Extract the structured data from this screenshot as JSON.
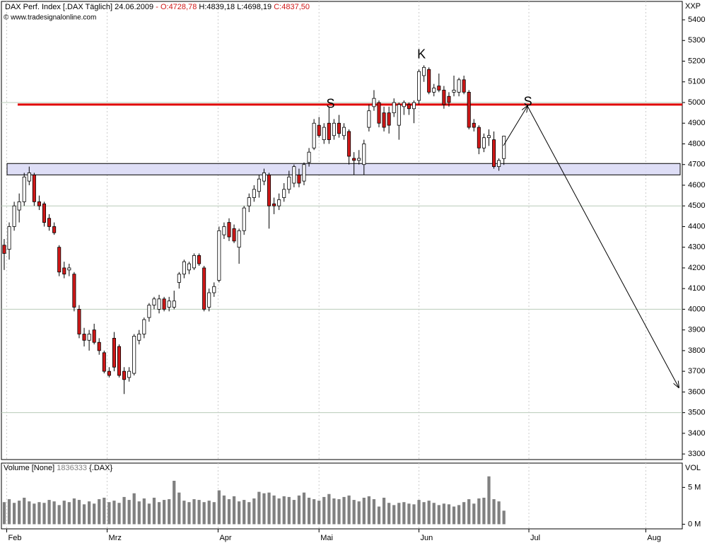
{
  "header": {
    "instrument": "DAX Perf. Index [.DAX  Täglich]",
    "date": "24.06.2009",
    "dash": "-",
    "open": "O:4728,78",
    "high": "H:4839,18",
    "low": "L:4698,19",
    "close": "C:4837,50",
    "copyright": "© www.tradesignalonline.com",
    "price_unit": "XXP"
  },
  "chart_data": [
    {
      "type": "candlestick",
      "ylim": [
        3273,
        5489
      ],
      "yticks": [
        3300,
        3400,
        3500,
        3600,
        3700,
        3800,
        3900,
        4000,
        4100,
        4200,
        4300,
        4400,
        4500,
        4600,
        4700,
        4800,
        4900,
        5000,
        5100,
        5200,
        5300,
        5400
      ],
      "ygrid": [
        3500,
        4000,
        4500,
        5000
      ],
      "xlim": [
        -0.56,
        135.7
      ],
      "xticks": [
        {
          "value": 0.5,
          "label": "Feb"
        },
        {
          "value": 20.6,
          "label": "Mrz"
        },
        {
          "value": 42.8,
          "label": "Apr"
        },
        {
          "value": 63,
          "label": "Mai"
        },
        {
          "value": 83,
          "label": "Jun"
        },
        {
          "value": 105,
          "label": "Jul"
        },
        {
          "value": 128.4,
          "label": "Aug"
        }
      ],
      "up_color": "#ffffff",
      "down_color": "#d01818",
      "resistance_level": 4990,
      "resistance_color": "#e00000",
      "support_zone": [
        4650,
        4705
      ],
      "support_color": "#d8d8f4",
      "annotations": [
        {
          "text": "S",
          "x": 65.3,
          "y": 4990
        },
        {
          "text": "K",
          "x": 83.5,
          "y": 5230
        },
        {
          "text": "S",
          "x": 104.8,
          "y": 5000
        }
      ],
      "open": [
        4310,
        4290,
        4400,
        4480,
        4520,
        4620,
        4650,
        4520,
        4510,
        4440,
        4400,
        4300,
        4200,
        4190,
        4170,
        4000,
        3880,
        3850,
        3900,
        3840,
        3790,
        3700,
        3860,
        3820,
        3700,
        3670,
        3690,
        3850,
        3880,
        3960,
        4020,
        4000,
        4050,
        4010,
        4010,
        4130,
        4170,
        4190,
        4200,
        4260,
        4200,
        4010,
        4080,
        4140,
        4360,
        4420,
        4390,
        4300,
        4380,
        4500,
        4540,
        4570,
        4620,
        4650,
        4510,
        4500,
        4540,
        4580,
        4610,
        4650,
        4620,
        4710,
        4780,
        4890,
        4820,
        4900,
        4840,
        4900,
        4840,
        4860,
        4730,
        4720,
        4700,
        4880,
        4980,
        5000,
        4950,
        4950,
        4950,
        4890,
        4980,
        4990,
        4970,
        5010,
        5130,
        5160,
        5050,
        5080,
        5060,
        5030,
        5050,
        5050,
        5110,
        5050,
        4900,
        4880,
        4780,
        4830,
        4820,
        4690,
        4728.78
      ],
      "high": [
        4340,
        4420,
        4520,
        4560,
        4660,
        4690,
        4660,
        4550,
        4520,
        4460,
        4420,
        4310,
        4230,
        4220,
        4180,
        4020,
        3910,
        3900,
        3930,
        3860,
        3800,
        3720,
        3890,
        3830,
        3720,
        3720,
        3880,
        3900,
        3960,
        4030,
        4060,
        4070,
        4060,
        4060,
        4090,
        4180,
        4240,
        4230,
        4270,
        4270,
        4210,
        4100,
        4130,
        4400,
        4420,
        4440,
        4410,
        4390,
        4500,
        4560,
        4600,
        4650,
        4680,
        4660,
        4540,
        4560,
        4610,
        4670,
        4700,
        4680,
        4710,
        4780,
        4920,
        4930,
        4900,
        4980,
        4920,
        4940,
        4900,
        4870,
        4760,
        4770,
        4820,
        4990,
        5060,
        5010,
        4980,
        4980,
        5020,
        5000,
        5010,
        5000,
        5010,
        5160,
        5180,
        5170,
        5090,
        5140,
        5080,
        5050,
        5130,
        5120,
        5130,
        5060,
        4920,
        4890,
        4850,
        4870,
        4860,
        4730,
        4839.18
      ],
      "low": [
        4190,
        4240,
        4380,
        4420,
        4500,
        4600,
        4500,
        4480,
        4400,
        4380,
        4360,
        4160,
        4150,
        4160,
        3990,
        3860,
        3820,
        3800,
        3830,
        3780,
        3690,
        3670,
        3700,
        3670,
        3590,
        3650,
        3680,
        3830,
        3860,
        3940,
        4000,
        3980,
        3990,
        3990,
        4000,
        4100,
        4150,
        4170,
        4190,
        4210,
        3990,
        3990,
        4060,
        4130,
        4340,
        4330,
        4320,
        4220,
        4360,
        4470,
        4520,
        4540,
        4600,
        4390,
        4460,
        4480,
        4520,
        4560,
        4590,
        4590,
        4600,
        4690,
        4770,
        4830,
        4800,
        4800,
        4820,
        4830,
        4820,
        4700,
        4650,
        4700,
        4650,
        4860,
        4960,
        4880,
        4860,
        4850,
        4930,
        4820,
        4940,
        4940,
        4900,
        4990,
        5100,
        5040,
        5030,
        5050,
        4970,
        4980,
        5030,
        5030,
        5040,
        4870,
        4860,
        4750,
        4760,
        4790,
        4680,
        4670,
        4698.19
      ],
      "close": [
        4270,
        4400,
        4500,
        4520,
        4640,
        4660,
        4520,
        4500,
        4420,
        4400,
        4370,
        4180,
        4170,
        4200,
        4010,
        3880,
        3850,
        3880,
        3840,
        3800,
        3700,
        3680,
        3720,
        3680,
        3660,
        3700,
        3870,
        3880,
        3950,
        4020,
        4050,
        4050,
        4000,
        4040,
        4040,
        4170,
        4230,
        4220,
        4260,
        4220,
        4000,
        4080,
        4110,
        4380,
        4400,
        4350,
        4330,
        4380,
        4490,
        4540,
        4580,
        4630,
        4660,
        4500,
        4500,
        4530,
        4580,
        4640,
        4690,
        4610,
        4700,
        4760,
        4900,
        4840,
        4880,
        4820,
        4900,
        4850,
        4880,
        4740,
        4720,
        4730,
        4800,
        4960,
        5020,
        4900,
        4880,
        4890,
        5000,
        4990,
        5000,
        4970,
        5000,
        5150,
        5170,
        5050,
        5070,
        5060,
        4990,
        5000,
        5060,
        5110,
        5050,
        4880,
        4880,
        4780,
        4830,
        4840,
        4690,
        4720,
        4837.5
      ]
    },
    {
      "type": "bar",
      "title": "Volume [None]",
      "last_value": "1836333",
      "symbol": "{.DAX}",
      "unit_label": "VOL",
      "ylim": [
        -0.63,
        8.3
      ],
      "yticks": [
        {
          "value": 0,
          "label": "0 M"
        },
        {
          "value": 5,
          "label": "5 M"
        }
      ],
      "color": "#808080",
      "values": [
        3.0,
        3.4,
        2.9,
        3.2,
        3.6,
        3.1,
        2.8,
        3.0,
        2.9,
        3.3,
        3.1,
        2.6,
        3.2,
        3.0,
        3.5,
        3.3,
        2.7,
        3.1,
        2.8,
        3.4,
        3.6,
        3.0,
        3.2,
        2.9,
        3.7,
        3.3,
        4.2,
        3.1,
        3.5,
        2.8,
        3.6,
        3.0,
        3.3,
        3.4,
        5.9,
        4.3,
        3.2,
        3.0,
        3.4,
        3.3,
        3.0,
        3.2,
        3.0,
        4.6,
        3.9,
        3.4,
        3.8,
        3.1,
        3.3,
        3.0,
        3.5,
        4.4,
        4.2,
        4.3,
        3.9,
        3.5,
        3.8,
        3.7,
        3.3,
        3.9,
        4.3,
        3.6,
        3.4,
        3.2,
        3.7,
        4.1,
        3.5,
        3.4,
        3.7,
        3.9,
        3.3,
        3.1,
        3.6,
        3.8,
        3.4,
        2.4,
        3.6,
        2.9,
        2.6,
        2.9,
        3.0,
        2.8,
        2.7,
        3.3,
        3.0,
        3.2,
        2.9,
        2.6,
        2.8,
        2.7,
        2.4,
        2.6,
        3.0,
        3.4,
        2.8,
        3.5,
        3.6,
        6.5,
        3.4,
        3.1,
        1.84
      ]
    }
  ]
}
